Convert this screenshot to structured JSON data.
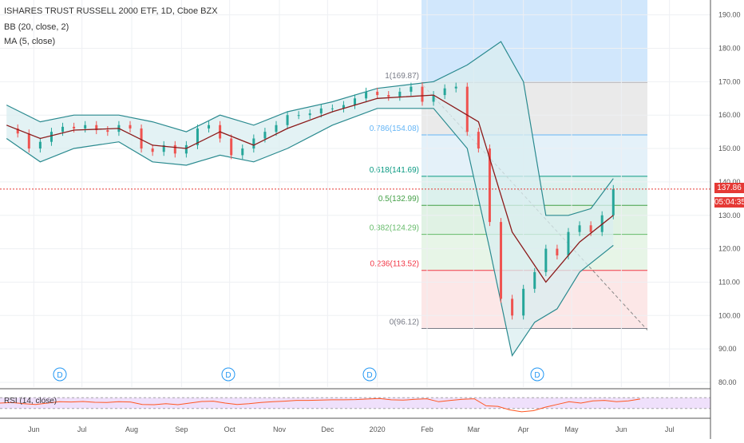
{
  "header": {
    "symbol_line": "ISHARES TRUST RUSSELL 2000 ETF, 1D, Cboe BZX",
    "indicator_bb": "BB (20, close, 2)",
    "indicator_ma": "MA (5, close)",
    "rsi_label": "RSI (14, close)"
  },
  "price_tags": {
    "last_price": "137.86",
    "countdown": "05:04:35"
  },
  "colors": {
    "bb_fill": "#d9eef0",
    "bb_line": "#2a8a8f",
    "ma_line": "#8b1a1a",
    "candle_up": "#26a69a",
    "candle_down": "#ef5350",
    "rsi_line": "#ff5722",
    "rsi_band": "#efe0fb",
    "fib_top_zone": "#b9dafb",
    "dividend_marker": "#2196f3"
  },
  "chart_data": {
    "type": "line",
    "title": "ISHARES TRUST RUSSELL 2000 ETF, 1D, Cboe BZX",
    "ylim": [
      76,
      194
    ],
    "y_ticks": [
      "190.00",
      "180.00",
      "170.00",
      "160.00",
      "150.00",
      "140.00",
      "130.00",
      "120.00",
      "110.00",
      "100.00",
      "90.00",
      "80.00"
    ],
    "x_tick_labels": [
      "Jun",
      "Jul",
      "Aug",
      "Sep",
      "Oct",
      "Nov",
      "Dec",
      "2020",
      "Feb",
      "Mar",
      "Apr",
      "May",
      "Jun",
      "Jul"
    ],
    "grid": true,
    "close_series": [
      [
        "2019-05-15",
        156.0
      ],
      [
        "2019-05-22",
        154.5
      ],
      [
        "2019-05-29",
        150.0
      ],
      [
        "2019-06-05",
        152.0
      ],
      [
        "2019-06-12",
        155.0
      ],
      [
        "2019-06-19",
        156.5
      ],
      [
        "2019-06-26",
        156.0
      ],
      [
        "2019-07-03",
        157.0
      ],
      [
        "2019-07-10",
        155.5
      ],
      [
        "2019-07-17",
        155.0
      ],
      [
        "2019-07-24",
        157.0
      ],
      [
        "2019-07-31",
        156.0
      ],
      [
        "2019-08-07",
        150.0
      ],
      [
        "2019-08-14",
        149.0
      ],
      [
        "2019-08-21",
        151.0
      ],
      [
        "2019-08-28",
        148.5
      ],
      [
        "2019-09-04",
        151.0
      ],
      [
        "2019-09-11",
        156.0
      ],
      [
        "2019-09-18",
        157.0
      ],
      [
        "2019-09-25",
        153.0
      ],
      [
        "2019-10-02",
        148.0
      ],
      [
        "2019-10-09",
        150.0
      ],
      [
        "2019-10-16",
        153.0
      ],
      [
        "2019-10-23",
        155.0
      ],
      [
        "2019-10-30",
        157.0
      ],
      [
        "2019-11-06",
        160.0
      ],
      [
        "2019-11-13",
        160.0
      ],
      [
        "2019-11-20",
        160.5
      ],
      [
        "2019-11-27",
        162.0
      ],
      [
        "2019-12-04",
        162.0
      ],
      [
        "2019-12-11",
        163.0
      ],
      [
        "2019-12-18",
        165.0
      ],
      [
        "2019-12-25",
        167.0
      ],
      [
        "2020-01-01",
        166.0
      ],
      [
        "2020-01-08",
        165.5
      ],
      [
        "2020-01-15",
        167.0
      ],
      [
        "2020-01-22",
        168.5
      ],
      [
        "2020-01-29",
        164.0
      ],
      [
        "2020-02-05",
        166.0
      ],
      [
        "2020-02-12",
        168.0
      ],
      [
        "2020-02-19",
        168.5
      ],
      [
        "2020-02-26",
        155.0
      ],
      [
        "2020-03-04",
        150.0
      ],
      [
        "2020-03-11",
        128.0
      ],
      [
        "2020-03-18",
        105.0
      ],
      [
        "2020-03-25",
        100.0
      ],
      [
        "2020-04-01",
        108.0
      ],
      [
        "2020-04-08",
        113.0
      ],
      [
        "2020-04-15",
        120.0
      ],
      [
        "2020-04-22",
        118.0
      ],
      [
        "2020-04-29",
        125.0
      ],
      [
        "2020-05-06",
        127.0
      ],
      [
        "2020-05-13",
        125.0
      ],
      [
        "2020-05-20",
        130.0
      ],
      [
        "2020-05-27",
        137.86
      ]
    ],
    "series_ma": [
      [
        "2019-05-15",
        157.0
      ],
      [
        "2019-06-05",
        153.0
      ],
      [
        "2019-06-26",
        155.5
      ],
      [
        "2019-07-24",
        156.0
      ],
      [
        "2019-08-14",
        151.0
      ],
      [
        "2019-09-04",
        150.0
      ],
      [
        "2019-09-25",
        155.0
      ],
      [
        "2019-10-16",
        151.0
      ],
      [
        "2019-11-06",
        156.0
      ],
      [
        "2019-12-04",
        161.0
      ],
      [
        "2020-01-01",
        165.0
      ],
      [
        "2020-02-05",
        166.0
      ],
      [
        "2020-03-04",
        158.0
      ],
      [
        "2020-03-25",
        125.0
      ],
      [
        "2020-04-15",
        110.0
      ],
      [
        "2020-05-06",
        122.0
      ],
      [
        "2020-05-27",
        130.0
      ]
    ],
    "series_bb_upper": [
      [
        "2019-05-15",
        163.0
      ],
      [
        "2019-06-05",
        158.0
      ],
      [
        "2019-06-26",
        160.0
      ],
      [
        "2019-07-24",
        160.0
      ],
      [
        "2019-08-14",
        158.0
      ],
      [
        "2019-09-04",
        155.0
      ],
      [
        "2019-09-25",
        160.0
      ],
      [
        "2019-10-16",
        157.0
      ],
      [
        "2019-11-06",
        161.0
      ],
      [
        "2019-12-04",
        164.0
      ],
      [
        "2020-01-01",
        168.0
      ],
      [
        "2020-02-05",
        170.0
      ],
      [
        "2020-02-26",
        175.0
      ],
      [
        "2020-03-18",
        182.0
      ],
      [
        "2020-04-01",
        170.0
      ],
      [
        "2020-04-15",
        130.0
      ],
      [
        "2020-04-29",
        130.0
      ],
      [
        "2020-05-13",
        132.0
      ],
      [
        "2020-05-27",
        141.0
      ]
    ],
    "series_bb_lower": [
      [
        "2019-05-15",
        153.0
      ],
      [
        "2019-06-05",
        146.0
      ],
      [
        "2019-06-26",
        150.0
      ],
      [
        "2019-07-24",
        152.0
      ],
      [
        "2019-08-14",
        146.0
      ],
      [
        "2019-09-04",
        145.0
      ],
      [
        "2019-09-25",
        148.0
      ],
      [
        "2019-10-16",
        146.0
      ],
      [
        "2019-11-06",
        150.0
      ],
      [
        "2019-12-04",
        157.0
      ],
      [
        "2020-01-01",
        162.0
      ],
      [
        "2020-02-05",
        162.0
      ],
      [
        "2020-02-26",
        150.0
      ],
      [
        "2020-03-11",
        120.0
      ],
      [
        "2020-03-25",
        88.0
      ],
      [
        "2020-04-08",
        98.0
      ],
      [
        "2020-04-22",
        102.0
      ],
      [
        "2020-05-06",
        113.0
      ],
      [
        "2020-05-27",
        121.0
      ]
    ],
    "fibonacci": [
      {
        "level": "1",
        "value": 169.87,
        "label": "1(169.87)",
        "color": "#787b86"
      },
      {
        "level": "0.786",
        "value": 154.08,
        "label": "0.786(154.08)",
        "color": "#64b5f6"
      },
      {
        "level": "0.618",
        "value": 141.69,
        "label": "0.618(141.69)",
        "color": "#089981"
      },
      {
        "level": "0.5",
        "value": 132.99,
        "label": "0.5(132.99)",
        "color": "#43a047"
      },
      {
        "level": "0.382",
        "value": 124.29,
        "label": "0.382(124.29)",
        "color": "#66bb6a"
      },
      {
        "level": "0.236",
        "value": 113.52,
        "label": "0.236(113.52)",
        "color": "#f23645"
      },
      {
        "level": "0",
        "value": 96.12,
        "label": "0(96.12)",
        "color": "#787b86"
      }
    ],
    "last_price": 137.86,
    "dividend_markers": [
      "D",
      "D",
      "D",
      "D"
    ],
    "rsi": [
      50,
      52,
      48,
      45,
      50,
      55,
      54,
      56,
      53,
      52,
      55,
      54,
      45,
      44,
      48,
      44,
      50,
      56,
      57,
      50,
      45,
      48,
      52,
      55,
      57,
      60,
      60,
      61,
      62,
      62,
      63,
      65,
      67,
      62,
      61,
      64,
      66,
      55,
      60,
      64,
      66,
      40,
      38,
      25,
      18,
      22,
      35,
      45,
      55,
      50,
      58,
      60,
      55,
      58,
      65
    ]
  }
}
